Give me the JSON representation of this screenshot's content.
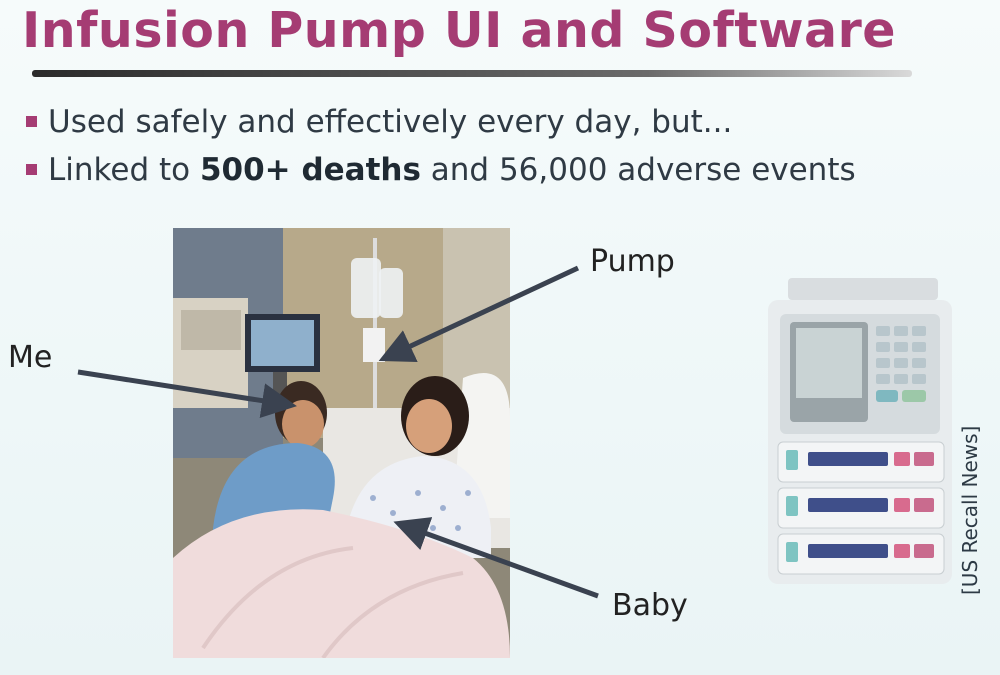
{
  "slide": {
    "title": "Infusion Pump UI and Software",
    "bullets": {
      "b1": "Used safely and effectively every day, but...",
      "b2_pre": "Linked to ",
      "b2_bold": "500+ deaths",
      "b2_post": " and 56,000 adverse events"
    },
    "labels": {
      "me": "Me",
      "pump": "Pump",
      "baby": "Baby"
    },
    "credit": "[US Recall News]"
  },
  "colors": {
    "title": "#a53c73",
    "bullet_marker": "#a53c73",
    "text": "#2f3a44",
    "arrow": "#3a4250"
  }
}
